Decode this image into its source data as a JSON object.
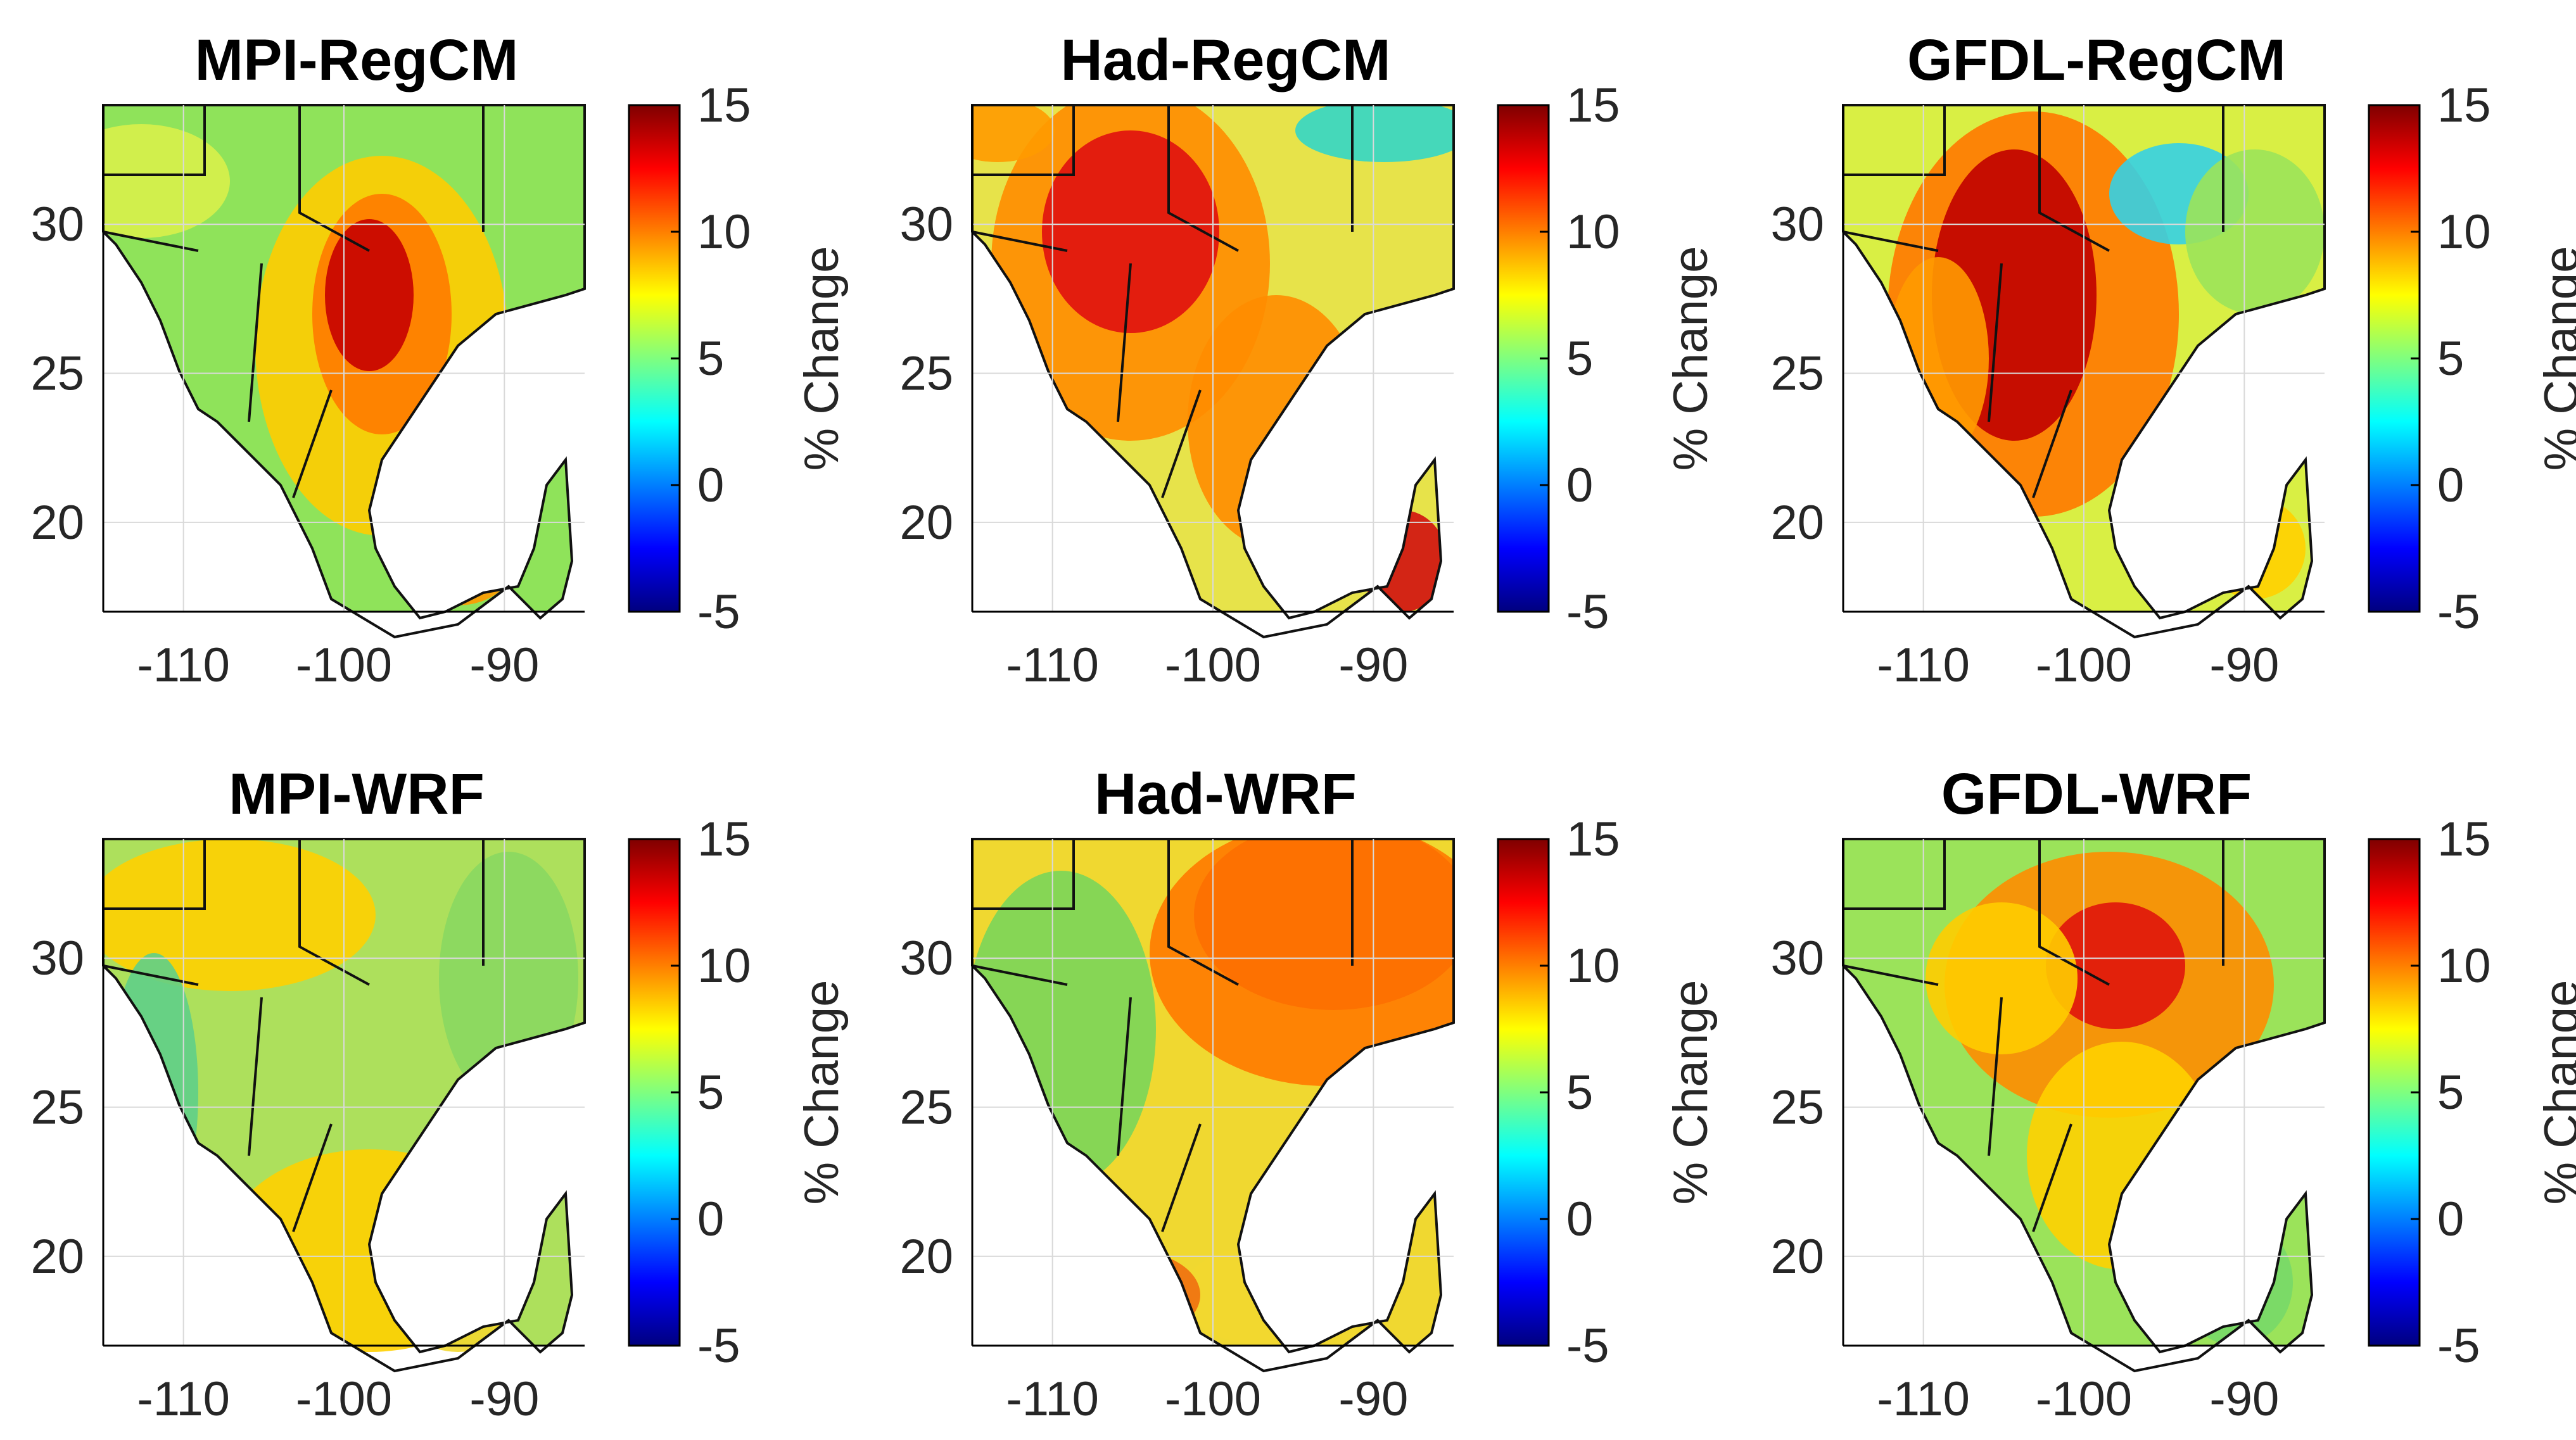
{
  "figure": {
    "colorbar": {
      "ticks": [
        "15",
        "10",
        "5",
        "0",
        "-5"
      ],
      "label": "% Change",
      "colors": [
        "#00007f",
        "#0000ff",
        "#007fff",
        "#00ffff",
        "#7fff7f",
        "#ffff00",
        "#ff7f00",
        "#ff0000",
        "#7f0000"
      ]
    },
    "x_ticks": [
      "-110",
      "-100",
      "-90"
    ],
    "y_ticks": [
      "30",
      "25",
      "20"
    ],
    "panels": [
      {
        "title": "MPI-RegCM"
      },
      {
        "title": "Had-RegCM"
      },
      {
        "title": "GFDL-RegCM"
      },
      {
        "title": "MPI-WRF"
      },
      {
        "title": "Had-WRF"
      },
      {
        "title": "GFDL-WRF"
      }
    ]
  },
  "chart_data": {
    "type": "heatmap",
    "value_label": "% Change",
    "value_range": [
      -5,
      15
    ],
    "x_range": [
      -115,
      -85
    ],
    "y_range": [
      17,
      34
    ],
    "x_ticks": [
      -110,
      -100,
      -90
    ],
    "y_ticks": [
      20,
      25,
      30
    ],
    "panels": [
      "MPI-RegCM",
      "Had-RegCM",
      "GFDL-RegCM",
      "MPI-WRF",
      "Had-WRF",
      "GFDL-WRF"
    ]
  }
}
